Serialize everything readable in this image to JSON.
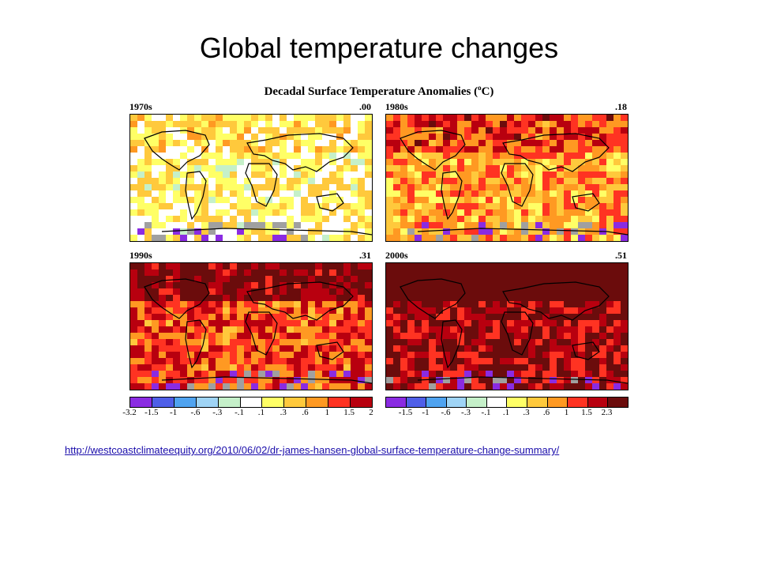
{
  "slide": {
    "title": "Global temperature  changes"
  },
  "figure": {
    "title": "Decadal Surface Temperature Anomalies (",
    "title_unit": "o",
    "title_end": "C)",
    "panels": [
      {
        "decade": "1970s",
        "mean": ".00",
        "warmth_level": 0.15
      },
      {
        "decade": "1980s",
        "mean": ".18",
        "warmth_level": 0.45
      },
      {
        "decade": "1990s",
        "mean": ".31",
        "warmth_level": 0.65
      },
      {
        "decade": "2000s",
        "mean": ".51",
        "warmth_level": 0.9
      }
    ],
    "scale_left": {
      "labels": [
        "-3.2",
        "-1.5",
        "-1",
        "-.6",
        "-.3",
        "-.1",
        ".1",
        ".3",
        ".6",
        "1",
        "1.5",
        "2"
      ],
      "colors": [
        "#8a2be2",
        "#4f5fe8",
        "#4fa3f0",
        "#9fd4f5",
        "#c5f0c9",
        "#ffffff",
        "#ffff66",
        "#ffc93c",
        "#ff9922",
        "#ff3322",
        "#b8000f"
      ]
    },
    "scale_right": {
      "labels": [
        "-1.5",
        "-1",
        "-.6",
        "-.3",
        "-.1",
        ".1",
        ".3",
        ".6",
        "1",
        "1.5",
        "2.3"
      ],
      "colors": [
        "#8a2be2",
        "#4f5fe8",
        "#4fa3f0",
        "#9fd4f5",
        "#c5f0c9",
        "#ffffff",
        "#ffff66",
        "#ffc93c",
        "#ff9922",
        "#ff3322",
        "#b8000f",
        "#6b0c0c"
      ]
    }
  },
  "source": {
    "url": "http://westcoastclimateequity.org/2010/06/02/dr-james-hansen-global-surface-temperature-change-summary/"
  }
}
